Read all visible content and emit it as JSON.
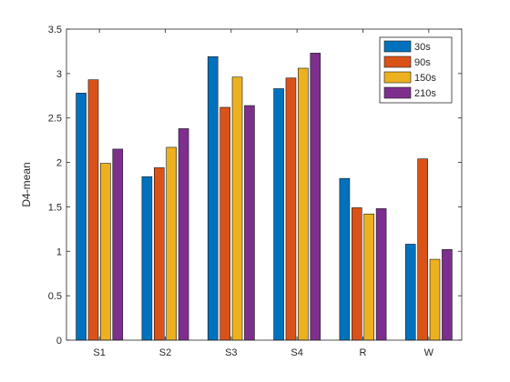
{
  "chart_data": {
    "type": "bar",
    "categories": [
      "S1",
      "S2",
      "S3",
      "S4",
      "R",
      "W"
    ],
    "series": [
      {
        "name": "30s",
        "color": "#0072BD",
        "values": [
          2.78,
          1.84,
          3.19,
          2.83,
          1.82,
          1.08
        ]
      },
      {
        "name": "90s",
        "color": "#D95319",
        "values": [
          2.93,
          1.94,
          2.62,
          2.95,
          1.49,
          2.04
        ]
      },
      {
        "name": "150s",
        "color": "#EDB120",
        "values": [
          1.99,
          2.17,
          2.96,
          3.06,
          1.42,
          0.91
        ]
      },
      {
        "name": "210s",
        "color": "#7E2F8E",
        "values": [
          2.15,
          2.38,
          2.64,
          3.23,
          1.48,
          1.02
        ]
      }
    ],
    "title": "",
    "xlabel": "",
    "ylabel": "D4-mean",
    "ylim": [
      0,
      3.5
    ],
    "yticks": [
      0,
      0.5,
      1,
      1.5,
      2,
      2.5,
      3,
      3.5
    ],
    "ytick_labels": [
      "0",
      "0.5",
      "1",
      "1.5",
      "2",
      "2.5",
      "3",
      "3.5"
    ],
    "grid": false,
    "legend_position": "top-right"
  }
}
